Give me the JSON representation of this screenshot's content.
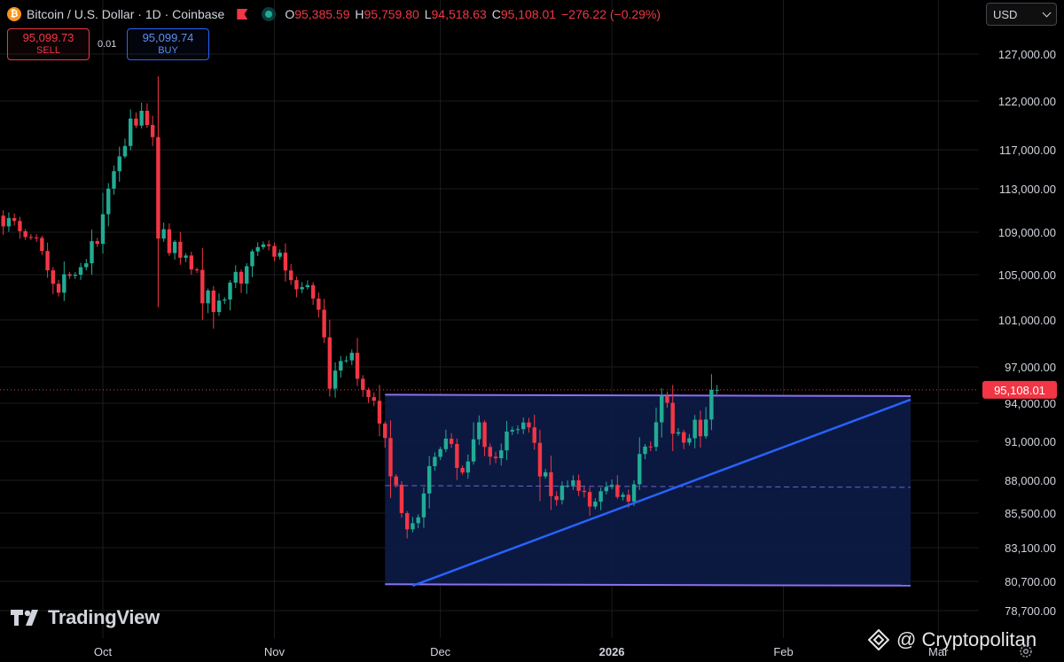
{
  "legend": {
    "coin_glyph": "₿",
    "title": "Bitcoin / U.S. Dollar · 1D · Coinbase",
    "ohlc": [
      {
        "k": "O",
        "v": "95,385.59"
      },
      {
        "k": "H",
        "v": "95,759.80"
      },
      {
        "k": "L",
        "v": "94,518.63"
      },
      {
        "k": "C",
        "v": "95,108.01"
      }
    ],
    "change": "−276.22 (−0.29%)"
  },
  "trade": {
    "sell_price": "95,099.73",
    "sell_label": "SELL",
    "spread": "0.01",
    "buy_price": "95,099.74",
    "buy_label": "BUY"
  },
  "currency": {
    "value": "USD"
  },
  "brand": {
    "name": "TradingView"
  },
  "credit": {
    "text": "@ Cryptopolitan"
  },
  "colors": {
    "up": "#22ab94",
    "down": "#f23645",
    "trend": "#2962ff",
    "range": "#8c6ff0",
    "range_fill": "#0c1a44"
  },
  "chart_data": {
    "type": "candlestick",
    "title": "Bitcoin / U.S. Dollar · 1D · Coinbase",
    "y_ticks": [
      "127,000.00",
      "122,000.00",
      "117,000.00",
      "113,000.00",
      "109,000.00",
      "105,000.00",
      "101,000.00",
      "97,000.00",
      "94,000.00",
      "91,000.00",
      "88,000.00",
      "85,500.00",
      "83,100.00",
      "80,700.00",
      "78,700.00"
    ],
    "x_labels": [
      "Oct",
      "Nov",
      "Dec",
      "2026",
      "Feb",
      "Mar"
    ],
    "last_price_label": "95,108.01",
    "last_price": 95108.01,
    "close_anchors": [
      {
        "date": "2025-09-05",
        "close": 110800
      },
      {
        "date": "2025-09-10",
        "close": 110900
      },
      {
        "date": "2025-09-14",
        "close": 110300
      },
      {
        "date": "2025-09-18",
        "close": 108500
      },
      {
        "date": "2025-09-22",
        "close": 104200
      },
      {
        "date": "2025-09-25",
        "close": 104900
      },
      {
        "date": "2025-09-30",
        "close": 107900
      },
      {
        "date": "2025-10-03",
        "close": 114800
      },
      {
        "date": "2025-10-06",
        "close": 120200
      },
      {
        "date": "2025-10-08",
        "close": 121000
      },
      {
        "date": "2025-10-10",
        "close": 118300
      },
      {
        "date": "2025-10-11",
        "close": 108400
      },
      {
        "date": "2025-10-14",
        "close": 108100
      },
      {
        "date": "2025-10-17",
        "close": 105500
      },
      {
        "date": "2025-10-21",
        "close": 101700
      },
      {
        "date": "2025-10-24",
        "close": 104300
      },
      {
        "date": "2025-10-27",
        "close": 105800
      },
      {
        "date": "2025-10-31",
        "close": 107700
      },
      {
        "date": "2025-11-03",
        "close": 105400
      },
      {
        "date": "2025-11-06",
        "close": 103900
      },
      {
        "date": "2025-11-09",
        "close": 101900
      },
      {
        "date": "2025-11-11",
        "close": 95200
      },
      {
        "date": "2025-11-13",
        "close": 97500
      },
      {
        "date": "2025-11-15",
        "close": 98200
      },
      {
        "date": "2025-11-17",
        "close": 95100
      },
      {
        "date": "2025-11-19",
        "close": 94200
      },
      {
        "date": "2025-11-20",
        "close": 92400
      },
      {
        "date": "2025-11-22",
        "close": 88300
      },
      {
        "date": "2025-11-24",
        "close": 85500
      },
      {
        "date": "2025-11-26",
        "close": 84800
      },
      {
        "date": "2025-11-28",
        "close": 87000
      },
      {
        "date": "2025-12-01",
        "close": 90400
      },
      {
        "date": "2025-12-03",
        "close": 90800
      },
      {
        "date": "2025-12-05",
        "close": 88600
      },
      {
        "date": "2025-12-08",
        "close": 92500
      },
      {
        "date": "2025-12-11",
        "close": 89700
      },
      {
        "date": "2025-12-14",
        "close": 91900
      },
      {
        "date": "2025-12-17",
        "close": 92100
      },
      {
        "date": "2025-12-19",
        "close": 88300
      },
      {
        "date": "2025-12-22",
        "close": 86500
      },
      {
        "date": "2025-12-24",
        "close": 87600
      },
      {
        "date": "2025-12-28",
        "close": 86000
      },
      {
        "date": "2025-12-31",
        "close": 87500
      },
      {
        "date": "2026-01-03",
        "close": 86900
      },
      {
        "date": "2026-01-05",
        "close": 87700
      },
      {
        "date": "2026-01-07",
        "close": 90600
      },
      {
        "date": "2026-01-09",
        "close": 92500
      },
      {
        "date": "2026-01-10",
        "close": 94600
      },
      {
        "date": "2026-01-12",
        "close": 91600
      },
      {
        "date": "2026-01-14",
        "close": 90900
      },
      {
        "date": "2026-01-16",
        "close": 92700
      },
      {
        "date": "2026-01-17",
        "close": 91400
      },
      {
        "date": "2026-01-19",
        "close": 95100
      },
      {
        "date": "2026-01-20",
        "close": 95108.01
      }
    ],
    "range_box": {
      "from": "2025-11-21",
      "to": "2026-02-24",
      "top": 94700,
      "bottom": 80500,
      "mid": 87600
    },
    "trend_line": {
      "from_date": "2025-11-26",
      "from_price": 80400,
      "to_date": "2026-02-24",
      "to_price": 94300
    }
  }
}
